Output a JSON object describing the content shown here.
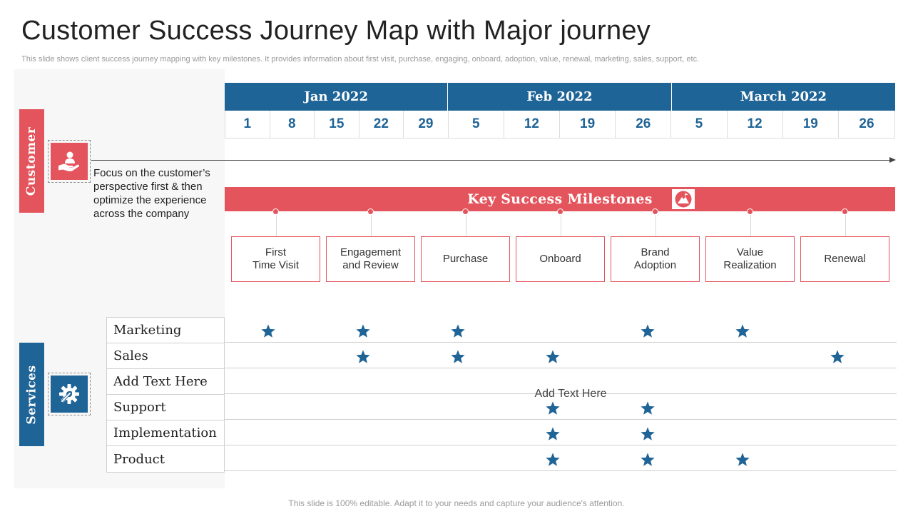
{
  "title": "Customer Success Journey Map with Major journey",
  "subtitle": "This slide shows client success journey mapping with key milestones. It provides information about first visit, purchase, engaging, onboard, adoption, value, renewal, marketing, sales, support, etc.",
  "customer": {
    "tab_label": "Customer",
    "icon": "hand-holding-person-icon",
    "description": "Focus on the customer’s perspective first & then optimize the experience across the company"
  },
  "services": {
    "tab_label": "Services",
    "icon": "gear-wrench-icon",
    "rows": [
      "Marketing",
      "Sales",
      "Add Text Here",
      "Support",
      "Implementation",
      "Product"
    ],
    "add_text": "Add Text Here"
  },
  "timeline": {
    "months": [
      {
        "label": "Jan 2022",
        "days": [
          "1",
          "8",
          "15",
          "22",
          "29"
        ]
      },
      {
        "label": "Feb 2022",
        "days": [
          "5",
          "12",
          "19",
          "26"
        ]
      },
      {
        "label": "March 2022",
        "days": [
          "5",
          "12",
          "19",
          "26"
        ]
      }
    ]
  },
  "milestones": {
    "title": "Key Success Milestones",
    "icon": "mountain-peak-icon",
    "items": [
      "First\nTime Visit",
      "Engagement\nand Review",
      "Purchase",
      "Onboard",
      "Brand\nAdoption",
      "Value\nRealization",
      "Renewal"
    ]
  },
  "stars": [
    {
      "row": "Marketing",
      "columns": [
        0,
        1,
        2,
        4,
        5
      ]
    },
    {
      "row": "Sales",
      "columns": [
        1,
        2,
        3,
        6
      ]
    },
    {
      "row": "Add Text Here",
      "columns": []
    },
    {
      "row": "Support",
      "columns": [
        3,
        4
      ]
    },
    {
      "row": "Implementation",
      "columns": [
        3,
        4
      ]
    },
    {
      "row": "Product",
      "columns": [
        3,
        4,
        5
      ]
    }
  ],
  "colors": {
    "red": "#e4545c",
    "blue": "#1f6496"
  },
  "footer": "This slide is 100% editable. Adapt it to your needs and capture your audience's attention."
}
